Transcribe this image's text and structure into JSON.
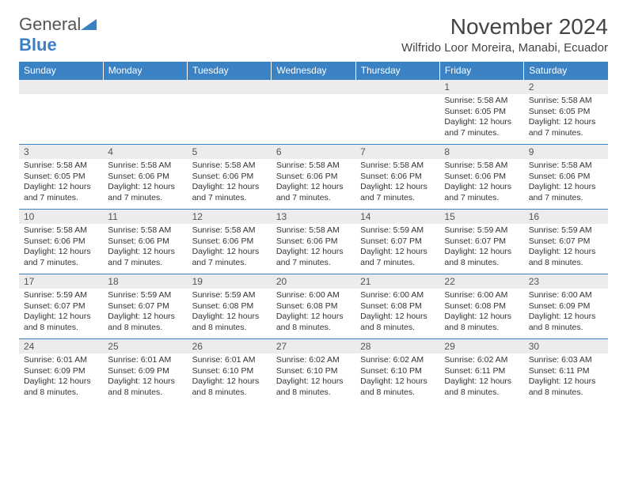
{
  "logo": {
    "text1": "General",
    "text2": "Blue"
  },
  "title": "November 2024",
  "location": "Wilfrido Loor Moreira, Manabi, Ecuador",
  "colors": {
    "header_bg": "#3b82c4",
    "header_text": "#ffffff",
    "daynum_bg": "#ececec",
    "border": "#3b82c4",
    "logo_blue": "#3b7fc4",
    "logo_gray": "#555555"
  },
  "day_headers": [
    "Sunday",
    "Monday",
    "Tuesday",
    "Wednesday",
    "Thursday",
    "Friday",
    "Saturday"
  ],
  "weeks": [
    [
      {
        "n": "",
        "sunrise": "",
        "sunset": "",
        "daylight": ""
      },
      {
        "n": "",
        "sunrise": "",
        "sunset": "",
        "daylight": ""
      },
      {
        "n": "",
        "sunrise": "",
        "sunset": "",
        "daylight": ""
      },
      {
        "n": "",
        "sunrise": "",
        "sunset": "",
        "daylight": ""
      },
      {
        "n": "",
        "sunrise": "",
        "sunset": "",
        "daylight": ""
      },
      {
        "n": "1",
        "sunrise": "Sunrise: 5:58 AM",
        "sunset": "Sunset: 6:05 PM",
        "daylight": "Daylight: 12 hours and 7 minutes."
      },
      {
        "n": "2",
        "sunrise": "Sunrise: 5:58 AM",
        "sunset": "Sunset: 6:05 PM",
        "daylight": "Daylight: 12 hours and 7 minutes."
      }
    ],
    [
      {
        "n": "3",
        "sunrise": "Sunrise: 5:58 AM",
        "sunset": "Sunset: 6:05 PM",
        "daylight": "Daylight: 12 hours and 7 minutes."
      },
      {
        "n": "4",
        "sunrise": "Sunrise: 5:58 AM",
        "sunset": "Sunset: 6:06 PM",
        "daylight": "Daylight: 12 hours and 7 minutes."
      },
      {
        "n": "5",
        "sunrise": "Sunrise: 5:58 AM",
        "sunset": "Sunset: 6:06 PM",
        "daylight": "Daylight: 12 hours and 7 minutes."
      },
      {
        "n": "6",
        "sunrise": "Sunrise: 5:58 AM",
        "sunset": "Sunset: 6:06 PM",
        "daylight": "Daylight: 12 hours and 7 minutes."
      },
      {
        "n": "7",
        "sunrise": "Sunrise: 5:58 AM",
        "sunset": "Sunset: 6:06 PM",
        "daylight": "Daylight: 12 hours and 7 minutes."
      },
      {
        "n": "8",
        "sunrise": "Sunrise: 5:58 AM",
        "sunset": "Sunset: 6:06 PM",
        "daylight": "Daylight: 12 hours and 7 minutes."
      },
      {
        "n": "9",
        "sunrise": "Sunrise: 5:58 AM",
        "sunset": "Sunset: 6:06 PM",
        "daylight": "Daylight: 12 hours and 7 minutes."
      }
    ],
    [
      {
        "n": "10",
        "sunrise": "Sunrise: 5:58 AM",
        "sunset": "Sunset: 6:06 PM",
        "daylight": "Daylight: 12 hours and 7 minutes."
      },
      {
        "n": "11",
        "sunrise": "Sunrise: 5:58 AM",
        "sunset": "Sunset: 6:06 PM",
        "daylight": "Daylight: 12 hours and 7 minutes."
      },
      {
        "n": "12",
        "sunrise": "Sunrise: 5:58 AM",
        "sunset": "Sunset: 6:06 PM",
        "daylight": "Daylight: 12 hours and 7 minutes."
      },
      {
        "n": "13",
        "sunrise": "Sunrise: 5:58 AM",
        "sunset": "Sunset: 6:06 PM",
        "daylight": "Daylight: 12 hours and 7 minutes."
      },
      {
        "n": "14",
        "sunrise": "Sunrise: 5:59 AM",
        "sunset": "Sunset: 6:07 PM",
        "daylight": "Daylight: 12 hours and 7 minutes."
      },
      {
        "n": "15",
        "sunrise": "Sunrise: 5:59 AM",
        "sunset": "Sunset: 6:07 PM",
        "daylight": "Daylight: 12 hours and 8 minutes."
      },
      {
        "n": "16",
        "sunrise": "Sunrise: 5:59 AM",
        "sunset": "Sunset: 6:07 PM",
        "daylight": "Daylight: 12 hours and 8 minutes."
      }
    ],
    [
      {
        "n": "17",
        "sunrise": "Sunrise: 5:59 AM",
        "sunset": "Sunset: 6:07 PM",
        "daylight": "Daylight: 12 hours and 8 minutes."
      },
      {
        "n": "18",
        "sunrise": "Sunrise: 5:59 AM",
        "sunset": "Sunset: 6:07 PM",
        "daylight": "Daylight: 12 hours and 8 minutes."
      },
      {
        "n": "19",
        "sunrise": "Sunrise: 5:59 AM",
        "sunset": "Sunset: 6:08 PM",
        "daylight": "Daylight: 12 hours and 8 minutes."
      },
      {
        "n": "20",
        "sunrise": "Sunrise: 6:00 AM",
        "sunset": "Sunset: 6:08 PM",
        "daylight": "Daylight: 12 hours and 8 minutes."
      },
      {
        "n": "21",
        "sunrise": "Sunrise: 6:00 AM",
        "sunset": "Sunset: 6:08 PM",
        "daylight": "Daylight: 12 hours and 8 minutes."
      },
      {
        "n": "22",
        "sunrise": "Sunrise: 6:00 AM",
        "sunset": "Sunset: 6:08 PM",
        "daylight": "Daylight: 12 hours and 8 minutes."
      },
      {
        "n": "23",
        "sunrise": "Sunrise: 6:00 AM",
        "sunset": "Sunset: 6:09 PM",
        "daylight": "Daylight: 12 hours and 8 minutes."
      }
    ],
    [
      {
        "n": "24",
        "sunrise": "Sunrise: 6:01 AM",
        "sunset": "Sunset: 6:09 PM",
        "daylight": "Daylight: 12 hours and 8 minutes."
      },
      {
        "n": "25",
        "sunrise": "Sunrise: 6:01 AM",
        "sunset": "Sunset: 6:09 PM",
        "daylight": "Daylight: 12 hours and 8 minutes."
      },
      {
        "n": "26",
        "sunrise": "Sunrise: 6:01 AM",
        "sunset": "Sunset: 6:10 PM",
        "daylight": "Daylight: 12 hours and 8 minutes."
      },
      {
        "n": "27",
        "sunrise": "Sunrise: 6:02 AM",
        "sunset": "Sunset: 6:10 PM",
        "daylight": "Daylight: 12 hours and 8 minutes."
      },
      {
        "n": "28",
        "sunrise": "Sunrise: 6:02 AM",
        "sunset": "Sunset: 6:10 PM",
        "daylight": "Daylight: 12 hours and 8 minutes."
      },
      {
        "n": "29",
        "sunrise": "Sunrise: 6:02 AM",
        "sunset": "Sunset: 6:11 PM",
        "daylight": "Daylight: 12 hours and 8 minutes."
      },
      {
        "n": "30",
        "sunrise": "Sunrise: 6:03 AM",
        "sunset": "Sunset: 6:11 PM",
        "daylight": "Daylight: 12 hours and 8 minutes."
      }
    ]
  ]
}
